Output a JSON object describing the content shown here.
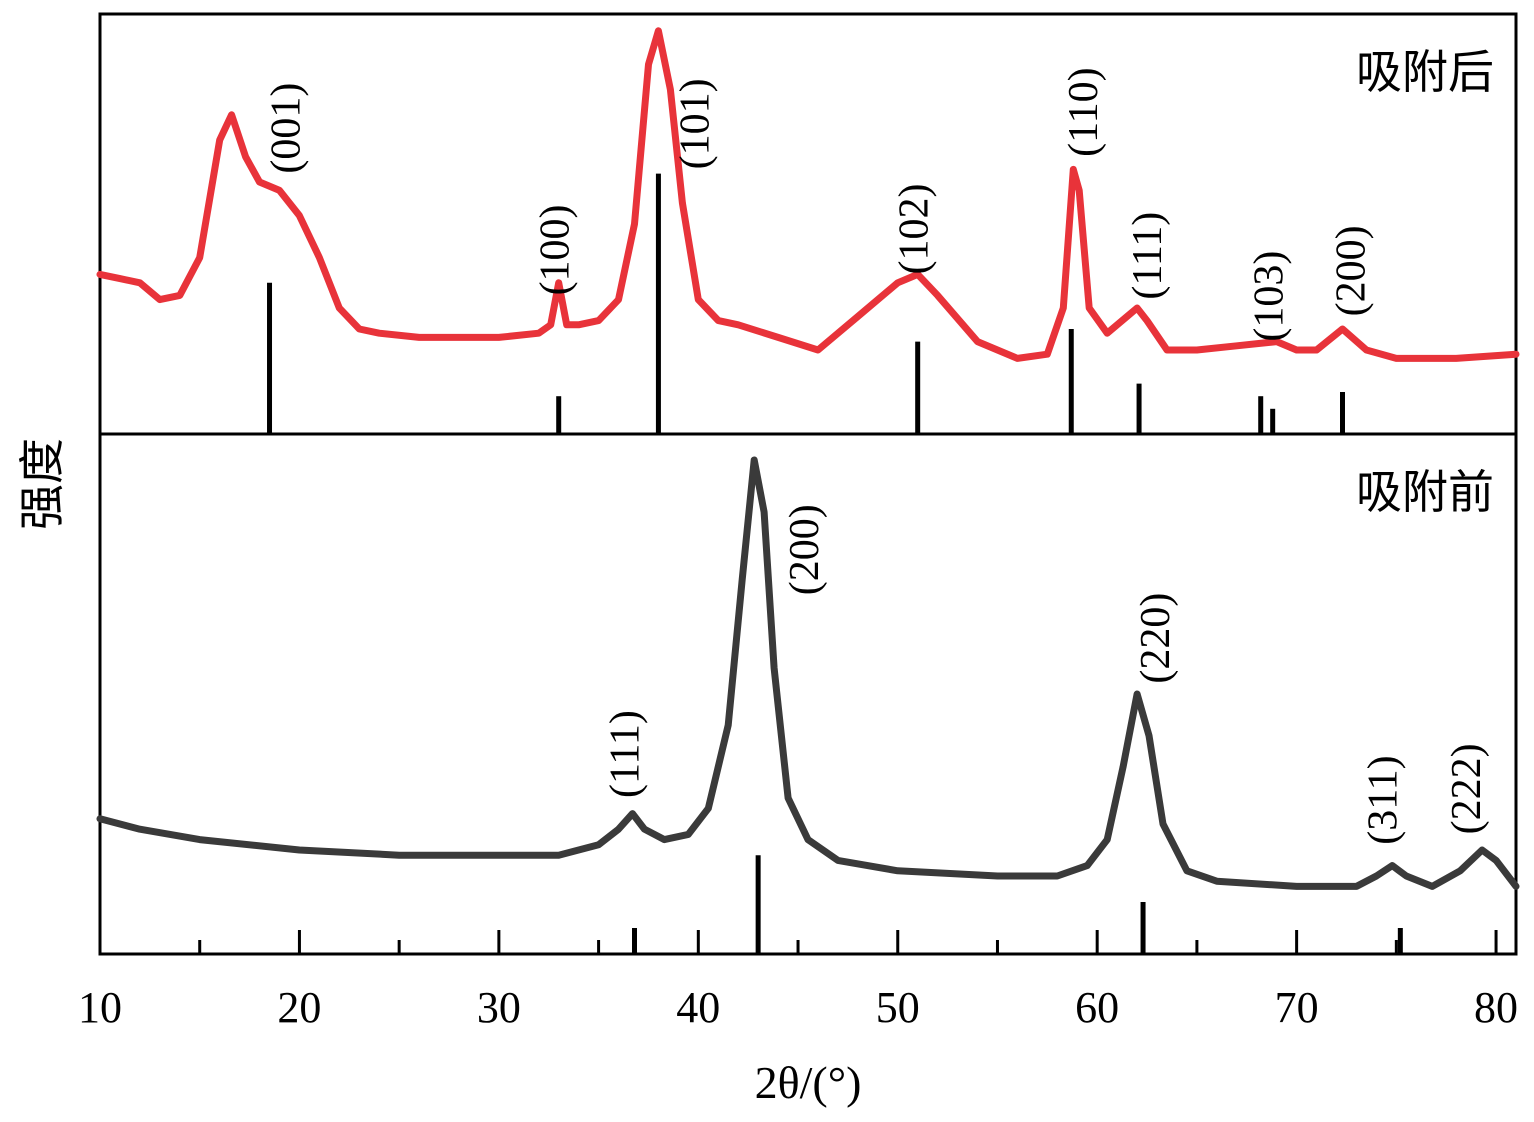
{
  "chart_data": {
    "type": "line",
    "xlabel": "2θ/(°)",
    "ylabel": "强度",
    "xlim": [
      10,
      81
    ],
    "x_ticks": [
      10,
      20,
      30,
      40,
      50,
      60,
      70,
      80
    ],
    "grid": false,
    "panels": [
      {
        "label": "吸附后",
        "color": "#e8333a",
        "ylim": [
          0,
          100
        ],
        "curve": [
          [
            10,
            38
          ],
          [
            11,
            37
          ],
          [
            12,
            36
          ],
          [
            13,
            32
          ],
          [
            14,
            33
          ],
          [
            15,
            42
          ],
          [
            16,
            70
          ],
          [
            16.6,
            76
          ],
          [
            17.3,
            66
          ],
          [
            18,
            60
          ],
          [
            19,
            58
          ],
          [
            20,
            52
          ],
          [
            21,
            42
          ],
          [
            22,
            30
          ],
          [
            23,
            25
          ],
          [
            24,
            24
          ],
          [
            26,
            23
          ],
          [
            28,
            23
          ],
          [
            30,
            23
          ],
          [
            32,
            24
          ],
          [
            32.6,
            26
          ],
          [
            33,
            36
          ],
          [
            33.4,
            26
          ],
          [
            34,
            26
          ],
          [
            35,
            27
          ],
          [
            36,
            32
          ],
          [
            36.8,
            50
          ],
          [
            37.5,
            88
          ],
          [
            38,
            96
          ],
          [
            38.6,
            82
          ],
          [
            39.2,
            55
          ],
          [
            40,
            32
          ],
          [
            41,
            27
          ],
          [
            42,
            26
          ],
          [
            44,
            23
          ],
          [
            46,
            20
          ],
          [
            48,
            28
          ],
          [
            50,
            36
          ],
          [
            51,
            38
          ],
          [
            52,
            33
          ],
          [
            54,
            22
          ],
          [
            56,
            18
          ],
          [
            57.5,
            19
          ],
          [
            58.3,
            30
          ],
          [
            58.8,
            63
          ],
          [
            59.1,
            58
          ],
          [
            59.6,
            30
          ],
          [
            60.5,
            24
          ],
          [
            61.5,
            28
          ],
          [
            62,
            30
          ],
          [
            62.5,
            27
          ],
          [
            63.5,
            20
          ],
          [
            65,
            20
          ],
          [
            67,
            21
          ],
          [
            69,
            22
          ],
          [
            70,
            20
          ],
          [
            71,
            20
          ],
          [
            72.3,
            25
          ],
          [
            73.5,
            20
          ],
          [
            75,
            18
          ],
          [
            78,
            18
          ],
          [
            81,
            19
          ]
        ],
        "reference_lines": [
          {
            "x": 18.5,
            "height": 36
          },
          {
            "x": 33,
            "height": 9
          },
          {
            "x": 38,
            "height": 62
          },
          {
            "x": 51,
            "height": 22
          },
          {
            "x": 58.7,
            "height": 25
          },
          {
            "x": 62.1,
            "height": 12
          },
          {
            "x": 68.2,
            "height": 9
          },
          {
            "x": 68.8,
            "height": 6
          },
          {
            "x": 72.3,
            "height": 10
          }
        ],
        "peak_labels": [
          {
            "text": "(001)",
            "x": 20,
            "y": 62
          },
          {
            "text": "(100)",
            "x": 33.5,
            "y": 33
          },
          {
            "text": "(101)",
            "x": 40.5,
            "y": 63
          },
          {
            "text": "(102)",
            "x": 51.5,
            "y": 38
          },
          {
            "text": "(110)",
            "x": 60,
            "y": 66
          },
          {
            "text": "(111)",
            "x": 63.2,
            "y": 32
          },
          {
            "text": "(103)",
            "x": 69.3,
            "y": 22
          },
          {
            "text": "(200)",
            "x": 73.4,
            "y": 28
          }
        ]
      },
      {
        "label": "吸附前",
        "color": "#3a3a3a",
        "ylim": [
          0,
          100
        ],
        "curve": [
          [
            10,
            26
          ],
          [
            12,
            24
          ],
          [
            15,
            22
          ],
          [
            20,
            20
          ],
          [
            25,
            19
          ],
          [
            30,
            19
          ],
          [
            33,
            19
          ],
          [
            35,
            21
          ],
          [
            36,
            24
          ],
          [
            36.7,
            27
          ],
          [
            37.3,
            24
          ],
          [
            38.3,
            22
          ],
          [
            39.5,
            23
          ],
          [
            40.5,
            28
          ],
          [
            41.5,
            44
          ],
          [
            42.2,
            72
          ],
          [
            42.8,
            95
          ],
          [
            43.3,
            85
          ],
          [
            43.8,
            55
          ],
          [
            44.5,
            30
          ],
          [
            45.5,
            22
          ],
          [
            47,
            18
          ],
          [
            50,
            16
          ],
          [
            55,
            15
          ],
          [
            58,
            15
          ],
          [
            59.5,
            17
          ],
          [
            60.5,
            22
          ],
          [
            61.3,
            36
          ],
          [
            62,
            50
          ],
          [
            62.6,
            42
          ],
          [
            63.3,
            25
          ],
          [
            64.5,
            16
          ],
          [
            66,
            14
          ],
          [
            70,
            13
          ],
          [
            73,
            13
          ],
          [
            74,
            15
          ],
          [
            74.8,
            17
          ],
          [
            75.5,
            15
          ],
          [
            76.8,
            13
          ],
          [
            78.2,
            16
          ],
          [
            79.3,
            20
          ],
          [
            80,
            18
          ],
          [
            81,
            13
          ]
        ],
        "reference_lines": [
          {
            "x": 36.8,
            "height": 5
          },
          {
            "x": 43,
            "height": 19
          },
          {
            "x": 62.3,
            "height": 10
          },
          {
            "x": 75.2,
            "height": 5
          }
        ],
        "peak_labels": [
          {
            "text": "(111)",
            "x": 37,
            "y": 30
          },
          {
            "text": "(200)",
            "x": 46,
            "y": 69
          },
          {
            "text": "(220)",
            "x": 63.6,
            "y": 52
          },
          {
            "text": "(311)",
            "x": 75,
            "y": 21
          },
          {
            "text": "(222)",
            "x": 79.2,
            "y": 23
          }
        ]
      }
    ]
  }
}
